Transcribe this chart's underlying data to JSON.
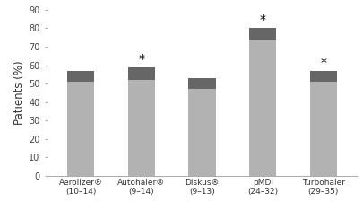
{
  "categories": [
    "Aerolizer®\n(10–14)",
    "Autohaler®\n(9–14)",
    "Diskus®\n(9–13)",
    "pMDI\n(24–32)",
    "Turbohaler\n(29–35)"
  ],
  "light_values": [
    51,
    52,
    47,
    74,
    51
  ],
  "total_values": [
    57,
    59,
    53,
    80,
    57
  ],
  "star_flags": [
    false,
    true,
    false,
    true,
    true
  ],
  "light_color": "#b2b2b2",
  "dark_color": "#666666",
  "ylabel": "Patients (%)",
  "ylim": [
    0,
    90
  ],
  "yticks": [
    0,
    10,
    20,
    30,
    40,
    50,
    60,
    70,
    80,
    90
  ],
  "bar_width": 0.45,
  "background_color": "#ffffff",
  "star_fontsize": 10,
  "ylabel_fontsize": 8.5,
  "tick_fontsize": 7,
  "xtick_fontsize": 6.5
}
